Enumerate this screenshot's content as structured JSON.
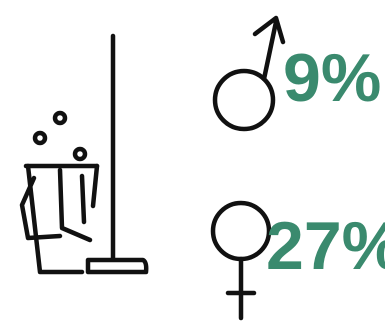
{
  "stats": {
    "male": {
      "symbol": "male-symbol-icon",
      "value": "9%"
    },
    "female": {
      "symbol": "female-symbol-icon",
      "value": "27%"
    }
  },
  "illustration": {
    "icon": "bucket-and-mop-icon"
  },
  "colors": {
    "accent": "#3a8a6e",
    "stroke": "#111111",
    "background": "#ffffff"
  }
}
